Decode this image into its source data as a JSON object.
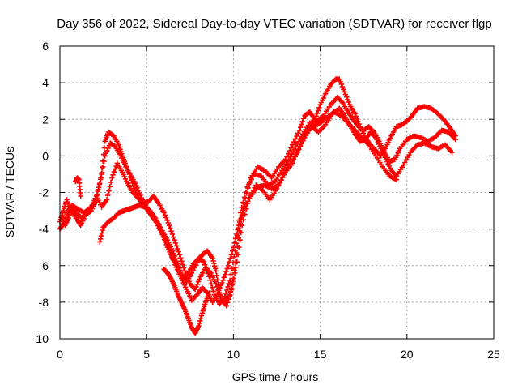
{
  "chart_data": {
    "type": "scatter",
    "title": "Day 356 of 2022, Sidereal Day-to-day VTEC variation (SDTVAR) for receiver flgp",
    "xlabel": "GPS time / hours",
    "ylabel": "SDTVAR / TECUs",
    "xlim": [
      0,
      25
    ],
    "ylim": [
      -10,
      6
    ],
    "x_ticks": [
      0,
      5,
      10,
      15,
      20,
      25
    ],
    "y_ticks": [
      -10,
      -8,
      -6,
      -4,
      -2,
      0,
      2,
      4,
      6
    ],
    "x_tick_labels": [
      "0",
      "5",
      "10",
      "15",
      "20",
      "25"
    ],
    "y_tick_labels": [
      "-10",
      "-8",
      "-6",
      "-4",
      "-2",
      "0",
      "2",
      "4",
      "6"
    ],
    "grid": true,
    "marker": "+",
    "color": "#ff0000",
    "series": [
      {
        "name": "track-1",
        "x": [
          0.0,
          0.2,
          0.4,
          0.6,
          1.0,
          1.2,
          1.5,
          1.8,
          2.1,
          2.4,
          2.6,
          2.8,
          3.1,
          3.4,
          3.6,
          3.8,
          4.0,
          4.3,
          4.6,
          5.0,
          5.3,
          5.6,
          5.9,
          6.2,
          6.5,
          6.8,
          7.0,
          7.3,
          7.6,
          8.0,
          8.2,
          8.5,
          8.8,
          9.0,
          9.2,
          9.5,
          9.8,
          10.0,
          10.3,
          10.6,
          11.0,
          11.4,
          11.8,
          12.2,
          12.6,
          13.0,
          13.4,
          13.8,
          14.1,
          14.4,
          14.7,
          15.0,
          15.3,
          15.6,
          15.9,
          16.1,
          16.4,
          16.7,
          17.0,
          17.3,
          17.6,
          17.9,
          18.2,
          18.5,
          18.8,
          19.1,
          19.4,
          19.7,
          20.0,
          20.3,
          20.6,
          21.0,
          21.4,
          21.8,
          22.2,
          22.5,
          22.8
        ],
        "y": [
          -3.6,
          -3.0,
          -2.4,
          -3.0,
          -3.5,
          -3.8,
          -3.2,
          -3.0,
          -2.4,
          -1.0,
          0.8,
          1.3,
          1.1,
          0.6,
          0.0,
          -0.5,
          -1.0,
          -1.8,
          -2.4,
          -2.9,
          -3.3,
          -3.6,
          -4.1,
          -4.6,
          -5.2,
          -5.9,
          -6.5,
          -6.9,
          -6.4,
          -5.7,
          -5.4,
          -5.2,
          -5.6,
          -6.3,
          -7.5,
          -8.0,
          -7.6,
          -6.7,
          -4.5,
          -2.6,
          -1.2,
          -0.6,
          -0.8,
          -1.2,
          -0.6,
          -0.2,
          0.6,
          1.4,
          2.2,
          2.4,
          2.0,
          2.8,
          3.4,
          3.9,
          4.2,
          4.2,
          3.5,
          2.8,
          2.3,
          1.6,
          1.0,
          0.6,
          0.3,
          0.0,
          0.5,
          1.1,
          1.6,
          1.7,
          1.9,
          2.2,
          2.6,
          2.7,
          2.6,
          2.3,
          1.9,
          1.5,
          1.1
        ]
      },
      {
        "name": "track-2",
        "x": [
          0.0,
          0.2,
          0.4,
          0.6,
          1.0,
          1.3,
          1.6,
          2.0,
          2.3,
          2.6,
          2.9,
          3.2,
          3.5,
          3.8,
          4.1,
          4.4,
          4.7,
          5.0,
          5.3,
          5.6,
          5.9,
          6.2,
          6.5,
          6.8,
          7.1,
          7.4,
          7.7,
          8.0,
          8.3,
          8.6,
          8.9,
          9.2,
          9.5,
          9.8,
          10.1,
          10.4,
          10.8,
          11.2,
          11.6,
          12.0,
          12.4,
          12.8,
          13.2,
          13.6,
          14.0,
          14.4,
          14.8,
          15.2,
          15.6,
          16.0,
          16.3,
          16.6,
          16.9,
          17.2,
          17.5,
          17.8,
          18.1,
          18.4,
          18.7,
          19.0,
          19.3,
          19.6,
          20.0,
          20.4,
          20.8,
          21.2,
          21.6,
          22.0,
          22.4,
          22.8
        ],
        "y": [
          -4.0,
          -3.7,
          -3.2,
          -2.8,
          -3.2,
          -3.4,
          -3.0,
          -2.6,
          -1.5,
          0.0,
          0.7,
          0.5,
          0.0,
          -0.6,
          -1.1,
          -1.6,
          -2.3,
          -2.8,
          -3.3,
          -3.7,
          -4.3,
          -5.0,
          -5.6,
          -6.2,
          -6.7,
          -6.4,
          -5.9,
          -5.6,
          -5.8,
          -6.6,
          -7.6,
          -8.1,
          -7.7,
          -6.8,
          -5.2,
          -3.1,
          -1.7,
          -1.0,
          -1.1,
          -1.6,
          -1.4,
          -0.8,
          -0.2,
          0.5,
          1.2,
          1.8,
          1.9,
          2.2,
          2.8,
          3.2,
          2.9,
          2.4,
          2.0,
          1.6,
          1.4,
          1.6,
          1.3,
          0.8,
          0.2,
          -0.3,
          -0.2,
          0.4,
          0.9,
          1.1,
          1.0,
          0.8,
          1.0,
          1.4,
          1.3,
          0.9
        ]
      },
      {
        "name": "track-3",
        "x": [
          0.1,
          0.3,
          0.5,
          0.7,
          1.0,
          1.4,
          1.8,
          2.1,
          2.4,
          2.7,
          3.0,
          3.3,
          3.6,
          3.9,
          4.2,
          4.5,
          4.8,
          5.1,
          5.4,
          5.7,
          6.0,
          6.3,
          6.6,
          6.9,
          7.2,
          7.5,
          7.8,
          8.1,
          8.4,
          8.7,
          9.0,
          9.3,
          9.6,
          9.9,
          10.2,
          10.5,
          10.9,
          11.3,
          11.7,
          12.1,
          12.5,
          12.9,
          13.3,
          13.7,
          14.1,
          14.5,
          14.9,
          15.3,
          15.7,
          16.1,
          16.4,
          16.7,
          17.0,
          17.3,
          17.6,
          17.9,
          18.2,
          18.5,
          18.8,
          19.1,
          19.4,
          19.8,
          20.2,
          20.6,
          21.0,
          21.4,
          21.8,
          22.2,
          22.6
        ],
        "y": [
          -3.3,
          -3.8,
          -3.4,
          -2.7,
          -2.9,
          -3.1,
          -2.8,
          -2.2,
          -2.8,
          -2.4,
          -1.2,
          -0.4,
          -0.9,
          -1.5,
          -2.0,
          -2.3,
          -2.6,
          -2.5,
          -2.2,
          -2.6,
          -3.1,
          -3.8,
          -4.6,
          -5.4,
          -6.3,
          -7.0,
          -7.3,
          -6.6,
          -6.1,
          -6.4,
          -7.0,
          -7.8,
          -8.2,
          -7.3,
          -5.8,
          -3.8,
          -2.3,
          -1.6,
          -1.9,
          -2.4,
          -1.8,
          -1.0,
          -0.4,
          0.2,
          1.0,
          1.6,
          1.3,
          1.7,
          2.3,
          2.6,
          2.2,
          1.7,
          1.2,
          0.8,
          0.9,
          1.3,
          1.0,
          0.4,
          -0.2,
          -0.8,
          -1.1,
          -0.5,
          0.2,
          0.6,
          0.7,
          0.5,
          0.4,
          0.6,
          0.2
        ]
      },
      {
        "name": "track-4",
        "x": [
          2.3,
          2.5,
          2.8,
          3.1,
          3.4,
          3.7,
          4.0,
          4.3,
          4.6,
          4.9,
          5.2,
          5.5,
          5.8,
          6.1,
          6.4,
          6.7,
          7.0,
          7.3,
          7.6,
          7.9,
          8.2,
          8.5,
          8.8,
          9.1,
          9.4,
          9.7,
          10.0,
          10.3,
          10.6,
          11.0,
          11.4,
          11.8,
          12.2,
          12.6,
          13.0,
          13.4,
          13.8,
          14.2,
          14.6,
          15.0,
          15.4,
          15.8,
          16.2,
          16.6,
          17.0,
          17.4,
          17.8,
          18.2,
          18.6,
          19.0,
          19.4
        ],
        "y": [
          -4.7,
          -3.9,
          -3.6,
          -3.4,
          -3.1,
          -3.0,
          -2.9,
          -2.8,
          -2.7,
          -2.8,
          -3.0,
          -3.4,
          -4.0,
          -4.6,
          -5.4,
          -6.1,
          -6.7,
          -7.3,
          -7.9,
          -7.6,
          -7.2,
          -7.5,
          -8.0,
          -7.5,
          -6.8,
          -6.0,
          -5.0,
          -3.8,
          -2.9,
          -2.2,
          -1.7,
          -1.6,
          -1.8,
          -1.6,
          -0.9,
          -0.4,
          0.5,
          1.3,
          1.6,
          1.8,
          2.1,
          2.4,
          2.2,
          1.8,
          1.4,
          1.0,
          0.6,
          0.0,
          -0.6,
          -1.1,
          -1.3
        ]
      },
      {
        "name": "track-5",
        "x": [
          6.0,
          6.2,
          6.4,
          6.6,
          6.8,
          7.0,
          7.2,
          7.4,
          7.6,
          7.8,
          8.0,
          8.2,
          8.4,
          8.6
        ],
        "y": [
          -6.2,
          -6.4,
          -6.7,
          -7.1,
          -7.6,
          -8.0,
          -8.4,
          -8.9,
          -9.4,
          -9.7,
          -9.3,
          -8.6,
          -8.0,
          -7.5
        ]
      },
      {
        "name": "track-6",
        "x": [
          0.9,
          1.0,
          1.1,
          1.2
        ],
        "y": [
          -1.4,
          -1.2,
          -1.3,
          -2.2
        ]
      }
    ]
  }
}
